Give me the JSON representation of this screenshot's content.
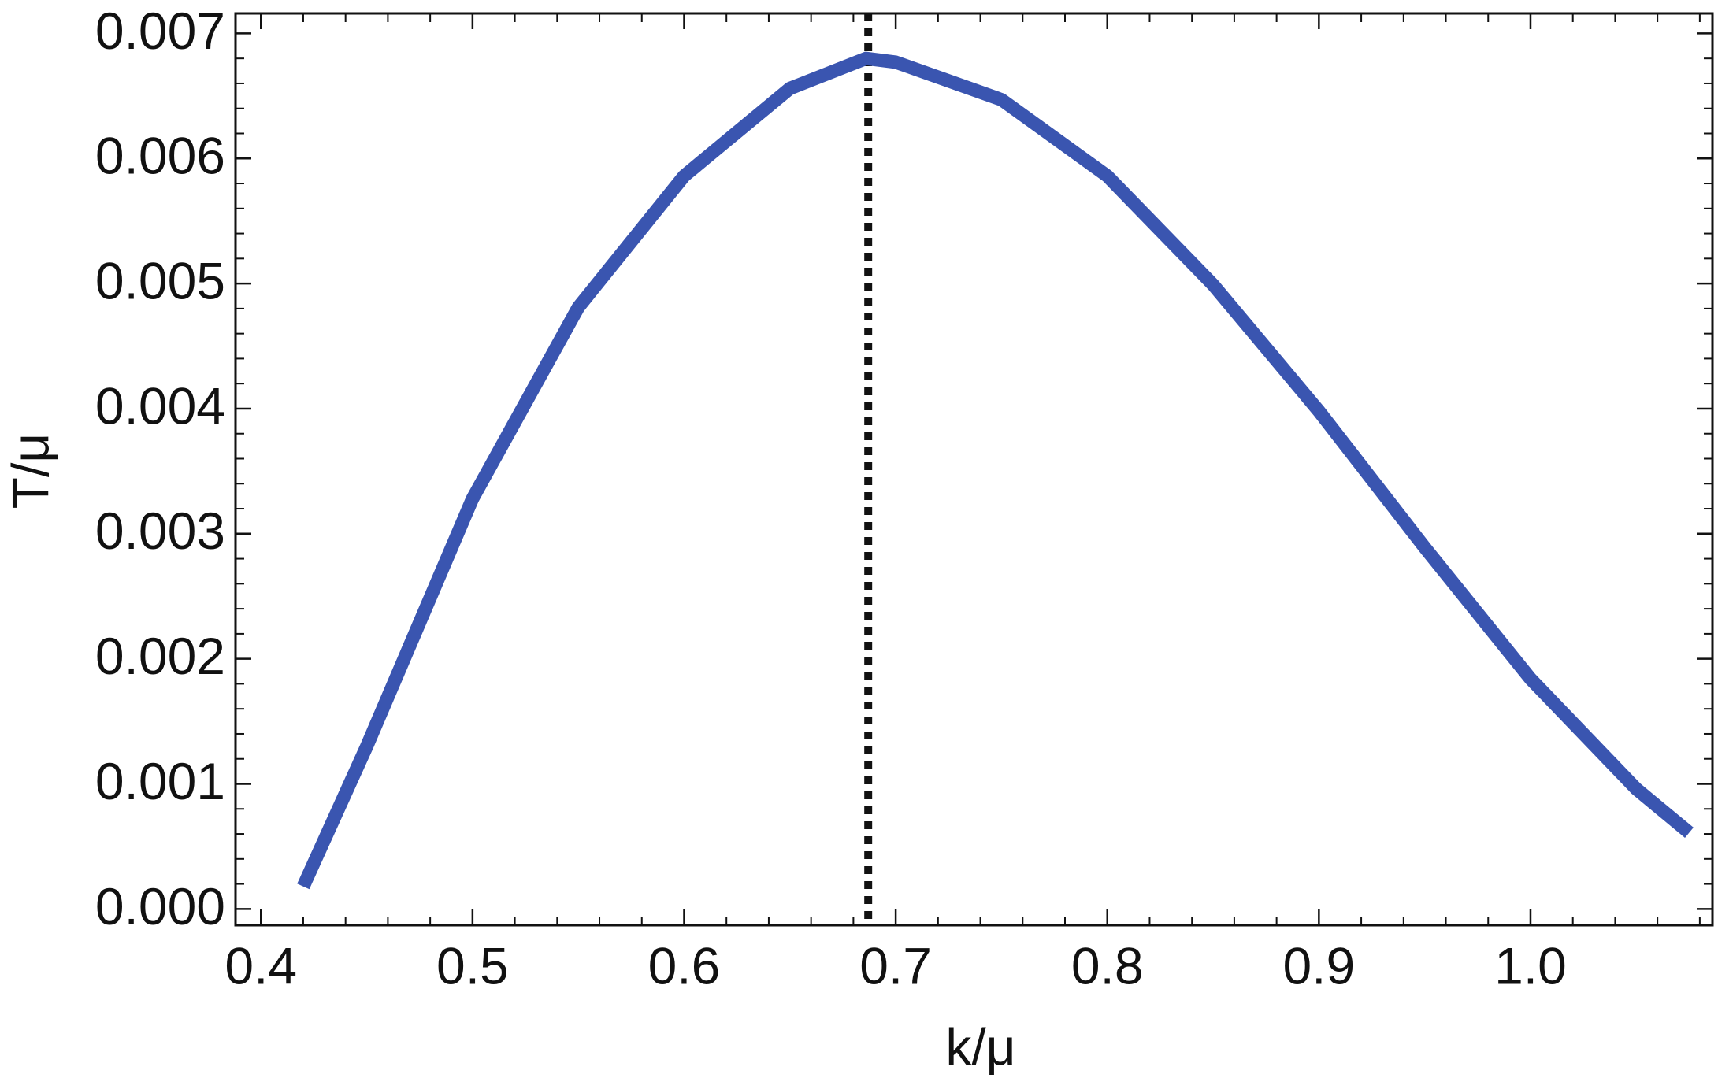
{
  "chart_data": {
    "type": "line",
    "xlabel": "k/μ",
    "ylabel": "T/μ",
    "x": [
      0.42,
      0.45,
      0.5,
      0.55,
      0.6,
      0.65,
      0.686,
      0.7,
      0.75,
      0.8,
      0.85,
      0.9,
      0.95,
      1.0,
      1.05,
      1.075
    ],
    "series": [
      {
        "color": "#3a55b0",
        "values": [
          0.00018,
          0.0013,
          0.00328,
          0.00481,
          0.00586,
          0.00656,
          0.0068,
          0.00677,
          0.00647,
          0.00586,
          0.00499,
          0.00398,
          0.00289,
          0.00184,
          0.00096,
          0.00061
        ]
      }
    ],
    "vline": 0.687,
    "xlim": [
      0.388,
      1.086
    ],
    "ylim": [
      -0.00013,
      0.00716
    ],
    "xticks": [
      0.4,
      0.5,
      0.6,
      0.7,
      0.8,
      0.9,
      {
        "value": 1.0,
        "label": "1.0"
      }
    ],
    "yticks": [
      {
        "value": 0,
        "label": "0.000"
      },
      {
        "value": 0.001,
        "label": "0.001"
      },
      {
        "value": 0.002,
        "label": "0.002"
      },
      {
        "value": 0.003,
        "label": "0.003"
      },
      {
        "value": 0.004,
        "label": "0.004"
      },
      {
        "value": 0.005,
        "label": "0.005"
      },
      {
        "value": 0.006,
        "label": "0.006"
      },
      {
        "value": 0.007,
        "label": "0.007"
      }
    ]
  }
}
